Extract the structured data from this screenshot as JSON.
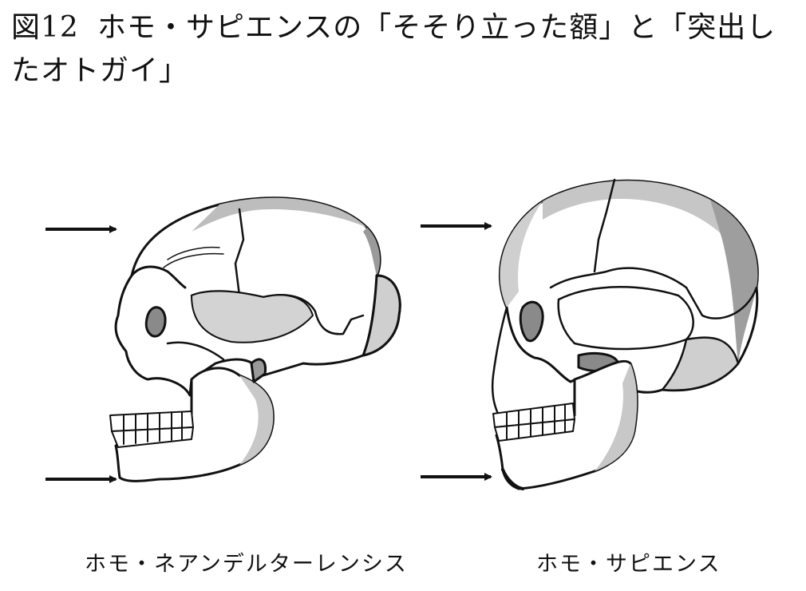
{
  "title": {
    "number": "図12",
    "text": "ホモ・サピエンスの「そそり立った額」と「突出したオトガイ」"
  },
  "skulls": [
    {
      "caption": "ホモ・ネアンデルターレンシス",
      "markers": [
        "forehead-arrow",
        "chin-arrow"
      ]
    },
    {
      "caption": "ホモ・サピエンス",
      "markers": [
        "forehead-arrow",
        "chin-arrow"
      ]
    }
  ],
  "colors": {
    "ink": "#111111",
    "shade": "#c8c8c8",
    "dark_shade": "#8a8a8a",
    "bone": "#ffffff"
  }
}
